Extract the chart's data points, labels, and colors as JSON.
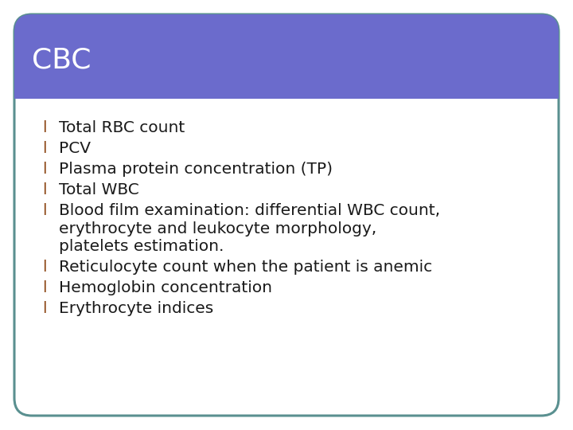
{
  "title": "CBC",
  "title_color": "#ffffff",
  "title_bg_color": "#6b6bcc",
  "header_line_color": "#ffffff",
  "bullet_char": "l",
  "bullet_color": "#8B4513",
  "text_color": "#1a1a1a",
  "border_color": "#5a9090",
  "background_color": "#ffffff",
  "slide_bg_color": "#ffffff",
  "bullet_points": [
    [
      "Total RBC count"
    ],
    [
      "PCV"
    ],
    [
      "Plasma protein concentration (TP)"
    ],
    [
      "Total WBC"
    ],
    [
      "Blood film examination: differential WBC count,",
      "erythrocyte and leukocyte morphology,",
      "platelets estimation."
    ],
    [
      "Reticulocyte count when the patient is anemic"
    ],
    [
      "Hemoglobin concentration"
    ],
    [
      "Erythrocyte indices"
    ]
  ],
  "title_fontsize": 26,
  "bullet_fontsize": 14.5,
  "figwidth": 7.2,
  "figheight": 5.4,
  "dpi": 100
}
